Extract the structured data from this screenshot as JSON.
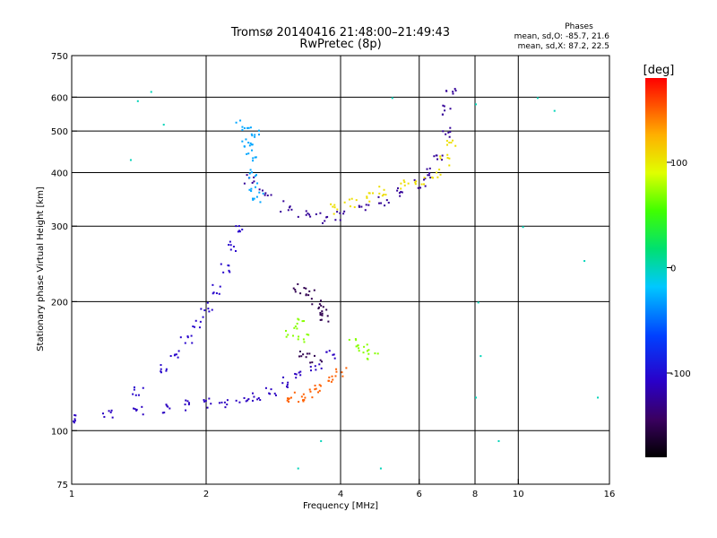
{
  "chart_data": {
    "type": "scatter",
    "title": "Tromsø 20140416 21:48:00–21:49:43",
    "subtitle": "RwPretec (8p)",
    "xlabel": "Frequency [MHz]",
    "ylabel": "Stationary phase Virtual Height [km]",
    "xscale": "log",
    "yscale": "log",
    "xlim": [
      1,
      16
    ],
    "ylim": [
      75,
      750
    ],
    "xticks": [
      1,
      2,
      4,
      6,
      8,
      10,
      16
    ],
    "xtick_labels": [
      "1",
      "2",
      "4",
      "6",
      "8",
      "10",
      "16"
    ],
    "xgrid": [
      2,
      4,
      6,
      8,
      10
    ],
    "yticks": [
      75,
      100,
      200,
      300,
      400,
      500,
      600,
      750
    ],
    "ytick_labels": [
      "75",
      "100",
      "200",
      "300",
      "400",
      "500",
      "600",
      "750"
    ],
    "ygrid": [
      100,
      200,
      300,
      400,
      500,
      600
    ],
    "phases_legend": {
      "title": "Phases",
      "line_o": "mean, sd,O: -85.7, 21.6",
      "line_x": "mean, sd,X:  87.2, 22.5"
    },
    "colorbar": {
      "label": "[deg]",
      "range": [
        -180,
        180
      ],
      "ticks": [
        100,
        0,
        -100
      ],
      "tick_labels": [
        "100",
        "0",
        "-100"
      ]
    },
    "series_traces": [
      {
        "name": "E-layer trace (blue)",
        "phase": -110,
        "points": [
          [
            1.0,
            108
          ],
          [
            1.2,
            110
          ],
          [
            1.4,
            112
          ],
          [
            1.6,
            113
          ],
          [
            1.8,
            115
          ],
          [
            2.0,
            116
          ],
          [
            2.2,
            117
          ],
          [
            2.4,
            119
          ],
          [
            2.6,
            121
          ],
          [
            2.8,
            125
          ],
          [
            3.0,
            130
          ],
          [
            3.2,
            135
          ],
          [
            3.5,
            142
          ],
          [
            3.8,
            150
          ]
        ]
      },
      {
        "name": "E-layer cusp (blue)",
        "phase": -105,
        "points": [
          [
            1.4,
            125
          ],
          [
            1.6,
            140
          ],
          [
            1.7,
            150
          ],
          [
            1.8,
            165
          ],
          [
            1.9,
            180
          ],
          [
            2.0,
            195
          ],
          [
            2.1,
            215
          ],
          [
            2.2,
            240
          ],
          [
            2.3,
            270
          ],
          [
            2.35,
            295
          ]
        ]
      },
      {
        "name": "F-layer trace (indigo)",
        "phase": -125,
        "points": [
          [
            2.5,
            390
          ],
          [
            2.7,
            360
          ],
          [
            3.0,
            335
          ],
          [
            3.3,
            320
          ],
          [
            3.6,
            315
          ],
          [
            4.0,
            318
          ],
          [
            4.5,
            330
          ],
          [
            5.0,
            345
          ],
          [
            5.5,
            360
          ],
          [
            6.0,
            380
          ],
          [
            6.3,
            400
          ],
          [
            6.6,
            440
          ],
          [
            6.8,
            500
          ],
          [
            6.9,
            560
          ],
          [
            7.0,
            620
          ]
        ]
      },
      {
        "name": "F-layer X trace (yellow)",
        "phase": 105,
        "points": [
          [
            3.8,
            330
          ],
          [
            4.2,
            340
          ],
          [
            4.6,
            350
          ],
          [
            5.0,
            365
          ],
          [
            5.5,
            375
          ],
          [
            6.0,
            385
          ],
          [
            6.5,
            400
          ],
          [
            6.8,
            430
          ],
          [
            7.0,
            470
          ]
        ]
      },
      {
        "name": "Es cluster (cyan)",
        "phase": -30,
        "points": [
          [
            2.4,
            520
          ],
          [
            2.45,
            480
          ],
          [
            2.5,
            440
          ],
          [
            2.5,
            400
          ],
          [
            2.55,
            370
          ],
          [
            2.6,
            350
          ],
          [
            2.45,
            460
          ],
          [
            2.55,
            500
          ]
        ]
      },
      {
        "name": "Low X trace (orange)",
        "phase": 150,
        "points": [
          [
            3.0,
            118
          ],
          [
            3.2,
            120
          ],
          [
            3.4,
            122
          ],
          [
            3.6,
            126
          ],
          [
            3.8,
            132
          ],
          [
            4.0,
            138
          ]
        ]
      },
      {
        "name": "Mid X cluster (yellow-green)",
        "phase": 70,
        "points": [
          [
            3.1,
            170
          ],
          [
            3.3,
            165
          ],
          [
            4.3,
            160
          ],
          [
            4.5,
            155
          ],
          [
            4.7,
            150
          ],
          [
            3.2,
            180
          ]
        ]
      },
      {
        "name": "Purple cluster",
        "phase": -150,
        "points": [
          [
            3.2,
            215
          ],
          [
            3.4,
            210
          ],
          [
            3.5,
            200
          ],
          [
            3.6,
            190
          ],
          [
            3.7,
            185
          ],
          [
            3.3,
            150
          ],
          [
            3.5,
            148
          ]
        ]
      },
      {
        "name": "Scattered noise",
        "phase": 0,
        "points": [
          [
            1.4,
            590
          ],
          [
            1.5,
            620
          ],
          [
            1.6,
            520
          ],
          [
            1.35,
            430
          ],
          [
            5.2,
            600
          ],
          [
            8.0,
            580
          ],
          [
            8.1,
            200
          ],
          [
            8.2,
            150
          ],
          [
            8.0,
            120
          ],
          [
            11,
            600
          ],
          [
            12,
            560
          ],
          [
            14,
            250
          ],
          [
            15,
            120
          ],
          [
            4.9,
            82
          ],
          [
            3.2,
            82
          ],
          [
            10.2,
            300
          ],
          [
            9.0,
            95
          ],
          [
            3.6,
            95
          ]
        ]
      }
    ]
  }
}
